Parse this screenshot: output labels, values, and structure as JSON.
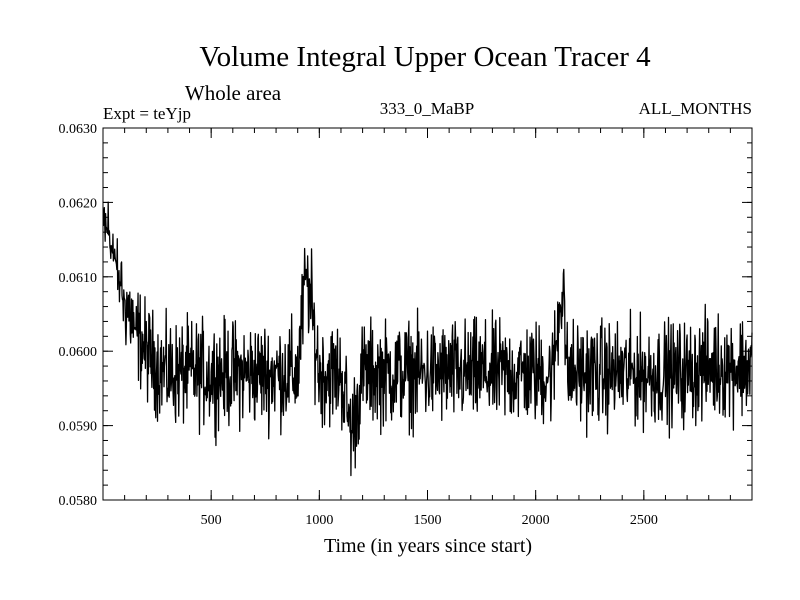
{
  "chart_data": {
    "type": "line",
    "title": "Volume Integral Upper Ocean Tracer 4",
    "subtitle": "Whole area",
    "header_left": "Expt = teYjp",
    "header_center": "333_0_MaBP",
    "header_right": "ALL_MONTHS",
    "xlabel": "Time (in years since start)",
    "ylabel": "",
    "xlim": [
      0,
      3000
    ],
    "ylim": [
      0.058,
      0.063
    ],
    "x_ticks": [
      500,
      1000,
      1500,
      2000,
      2500
    ],
    "x_tick_labels": [
      "500",
      "1000",
      "1500",
      "2000",
      "2500"
    ],
    "y_ticks": [
      0.058,
      0.059,
      0.06,
      0.061,
      0.062,
      0.063
    ],
    "y_tick_labels": [
      "0.0580",
      "0.0590",
      "0.0600",
      "0.0610",
      "0.0620",
      "0.0630"
    ],
    "grid": false,
    "line_color": "#000000",
    "series": [
      {
        "x": [
          0,
          20,
          40,
          60,
          80,
          100,
          150,
          200,
          250,
          300,
          400,
          500,
          600,
          700,
          800,
          900,
          940,
          1000,
          1100,
          1150,
          1200,
          1300,
          1400,
          1500,
          1600,
          1700,
          1800,
          1900,
          2000,
          2080,
          2130,
          2140,
          2200,
          2300,
          2400,
          2500,
          2600,
          2700,
          2800,
          2900,
          3000
        ],
        "values": [
          0.0617,
          0.0616,
          0.0614,
          0.0612,
          0.0609,
          0.0607,
          0.0603,
          0.06,
          0.0598,
          0.0597,
          0.0597,
          0.0597,
          0.0597,
          0.0597,
          0.0597,
          0.0597,
          0.0611,
          0.0597,
          0.0597,
          0.0589,
          0.0597,
          0.0597,
          0.0597,
          0.0597,
          0.0597,
          0.0597,
          0.0597,
          0.0597,
          0.0597,
          0.0597,
          0.0611,
          0.0597,
          0.0597,
          0.0597,
          0.0597,
          0.0597,
          0.0597,
          0.0597,
          0.0598,
          0.0598,
          0.0598
        ]
      }
    ]
  }
}
